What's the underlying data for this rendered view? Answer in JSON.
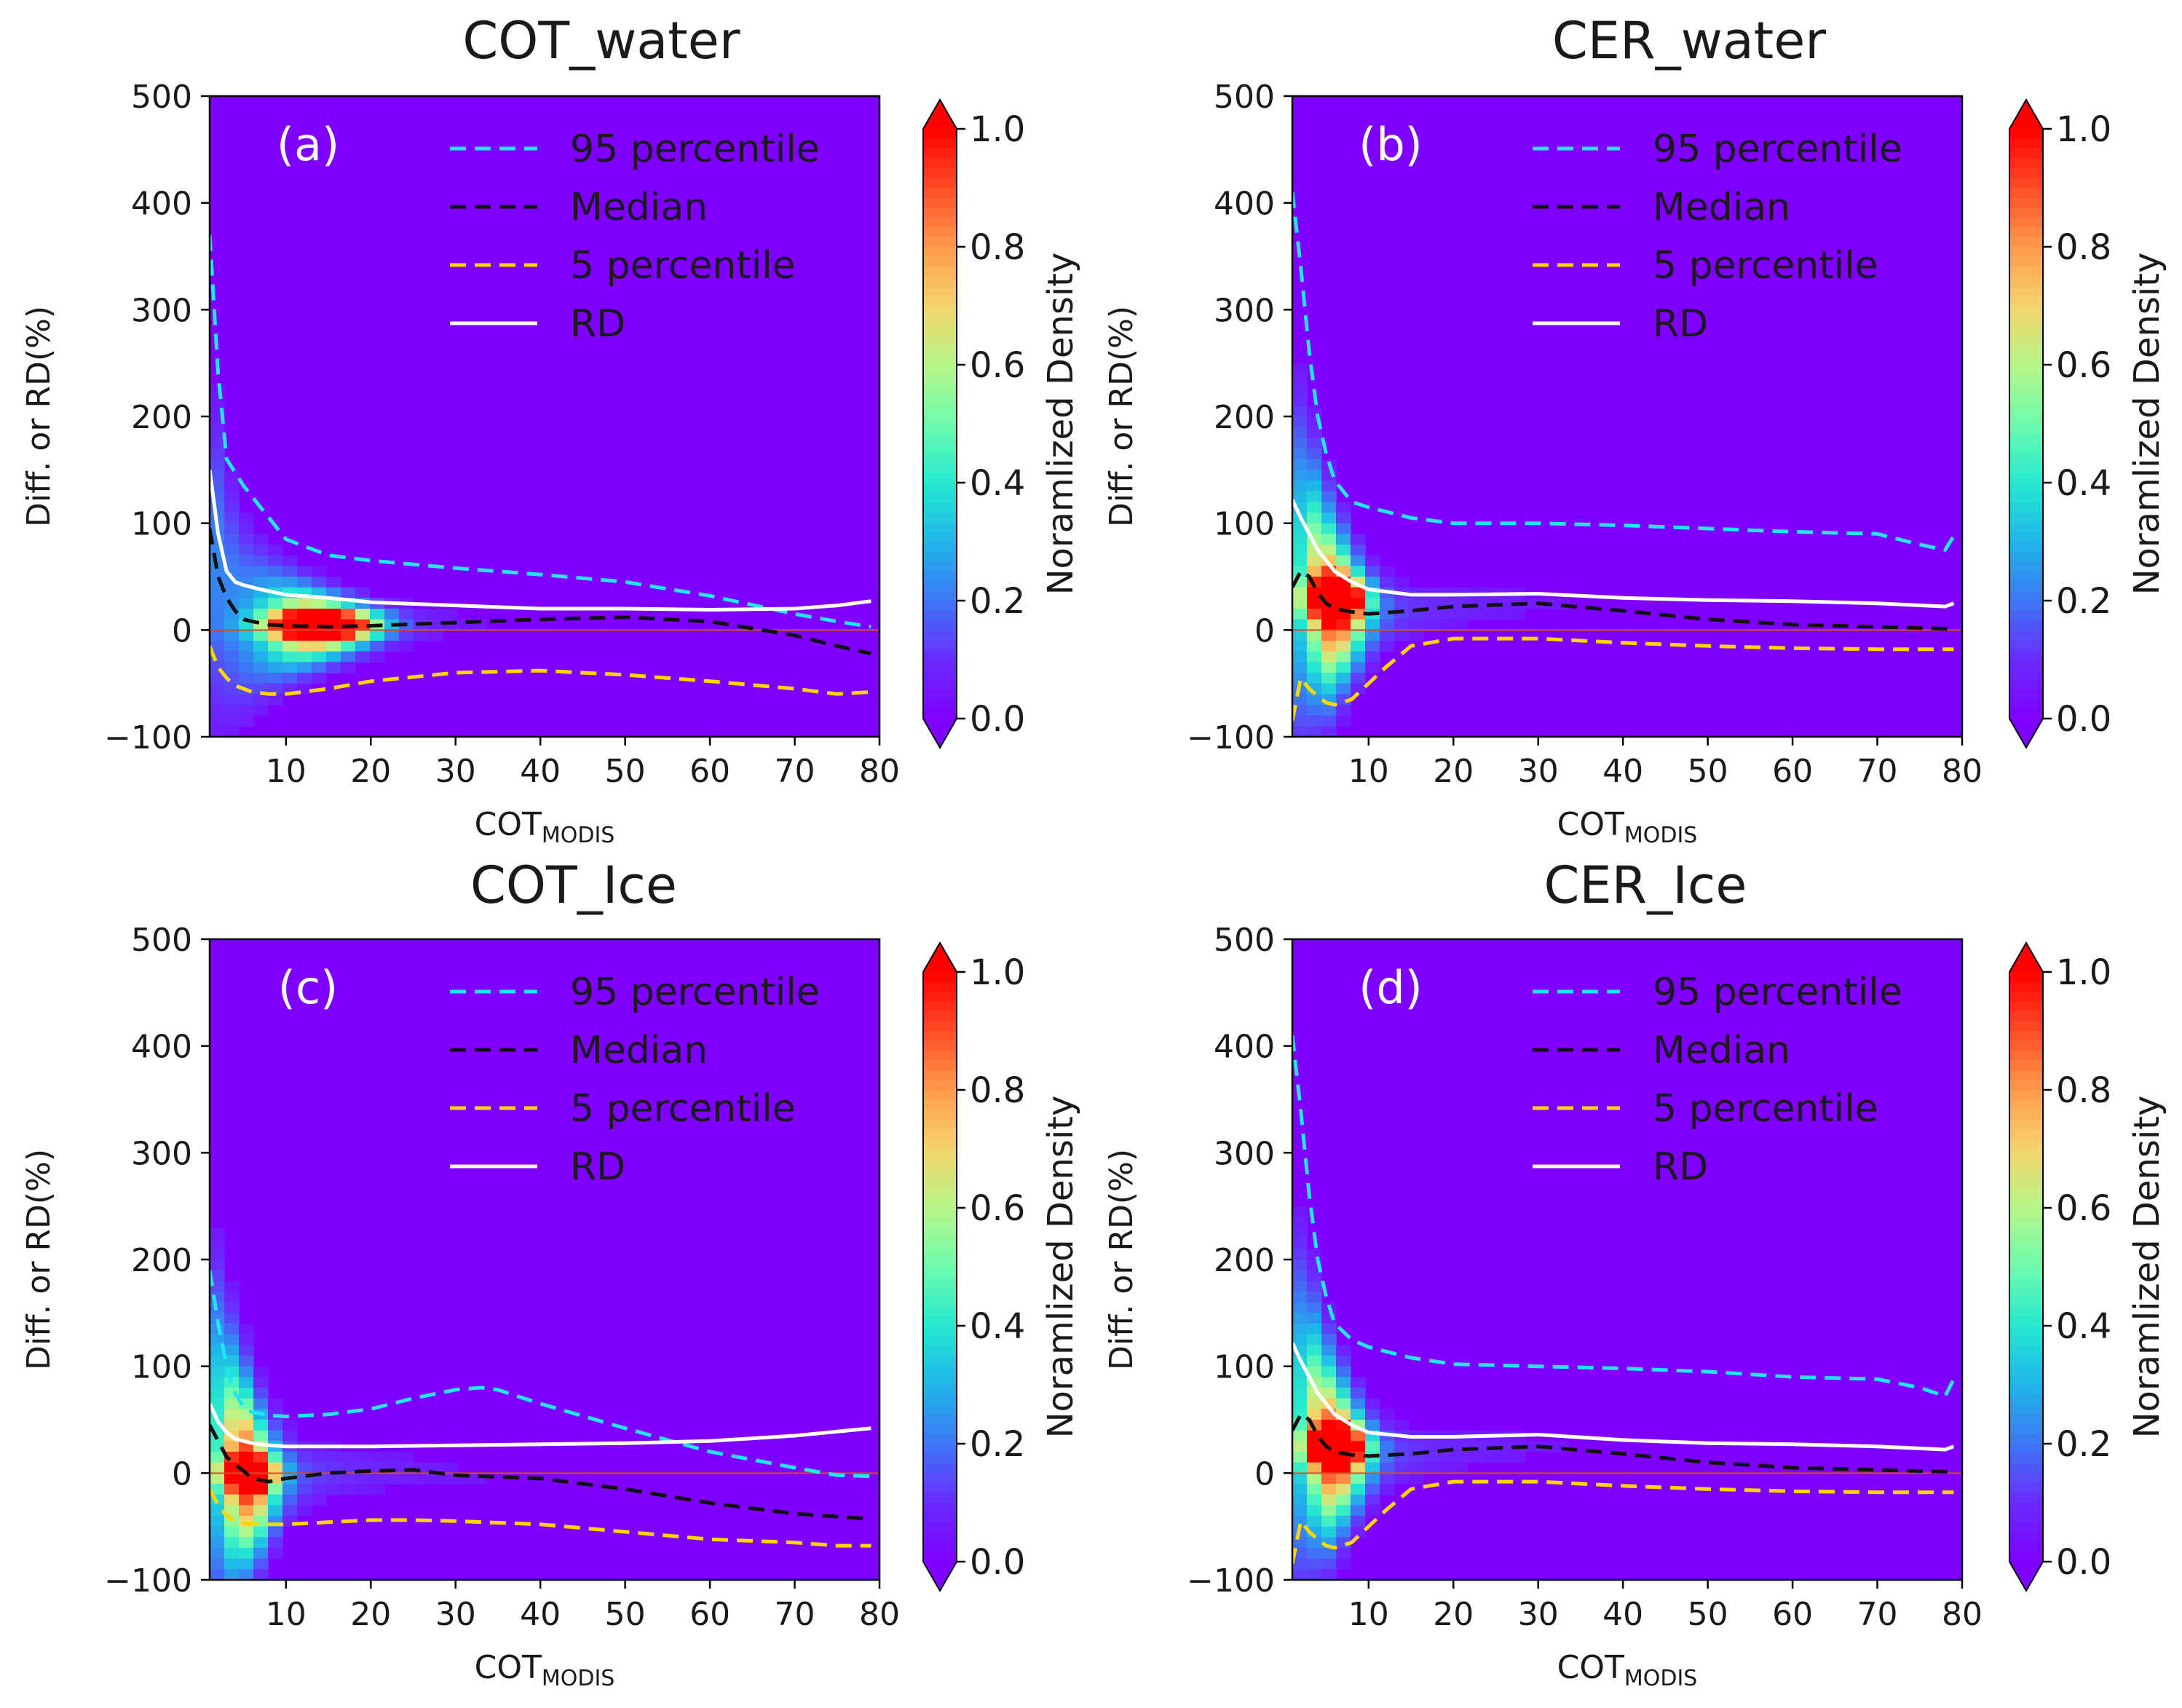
{
  "figure": {
    "colormap": [
      "#7f00ff",
      "#6a2bfe",
      "#3d77f5",
      "#1fb6e9",
      "#26e8d0",
      "#6dfcae",
      "#b6f587",
      "#f4d46a",
      "#ff9a4a",
      "#ff4c26",
      "#ff0000"
    ]
  },
  "chart_data": [
    {
      "type": "line",
      "panel": "(a)",
      "title": "COT_water",
      "xlabel_main": "COT",
      "xlabel_sub": "MODIS",
      "ylabel": "Diff. or RD(%)",
      "xlim": [
        1,
        80
      ],
      "ylim": [
        -100,
        500
      ],
      "xticks": [
        "10",
        "20",
        "30",
        "40",
        "50",
        "60",
        "70",
        "80"
      ],
      "yticks": [
        "500",
        "400",
        "300",
        "200",
        "100",
        "0",
        "−100"
      ],
      "colorbar": {
        "label": "Noramlized Density",
        "ticks": [
          "1.0",
          "0.8",
          "0.6",
          "0.4",
          "0.2",
          "0.0"
        ]
      },
      "legend": [
        "95 percentile",
        "Median",
        "5 percentile",
        "RD"
      ],
      "density_peak": {
        "x": 14,
        "y": 5,
        "sx": 6,
        "sy": 12
      },
      "series": [
        {
          "name": "95 percentile",
          "color": "#22e5f5",
          "dash": true,
          "x": [
            1,
            2,
            3,
            5,
            8,
            10,
            15,
            20,
            30,
            40,
            50,
            60,
            70,
            75,
            79
          ],
          "y": [
            370,
            240,
            160,
            135,
            105,
            85,
            70,
            65,
            58,
            52,
            45,
            32,
            15,
            8,
            3
          ]
        },
        {
          "name": "Median",
          "color": "#111111",
          "dash": true,
          "x": [
            1,
            2,
            3,
            4,
            5,
            6,
            8,
            10,
            15,
            20,
            30,
            40,
            50,
            60,
            70,
            75,
            79
          ],
          "y": [
            95,
            50,
            30,
            18,
            10,
            8,
            5,
            4,
            3,
            4,
            7,
            10,
            12,
            8,
            -5,
            -15,
            -22
          ]
        },
        {
          "name": "5 percentile",
          "color": "#ffd700",
          "dash": true,
          "x": [
            1,
            2,
            3,
            4,
            6,
            8,
            10,
            15,
            20,
            30,
            40,
            50,
            60,
            70,
            75,
            79
          ],
          "y": [
            -15,
            -35,
            -45,
            -52,
            -58,
            -60,
            -60,
            -55,
            -48,
            -40,
            -38,
            -42,
            -48,
            -55,
            -60,
            -58
          ]
        },
        {
          "name": "RD",
          "color": "#ffffff",
          "dash": false,
          "x": [
            1,
            2,
            3,
            4,
            5,
            7,
            10,
            15,
            20,
            30,
            40,
            50,
            60,
            70,
            75,
            79
          ],
          "y": [
            150,
            90,
            55,
            45,
            42,
            38,
            33,
            30,
            26,
            23,
            20,
            20,
            19,
            20,
            23,
            27
          ]
        }
      ]
    },
    {
      "type": "line",
      "panel": "(b)",
      "title": "CER_water",
      "xlabel_main": "COT",
      "xlabel_sub": "MODIS",
      "ylabel": "Diff. or RD(%)",
      "xlim": [
        1,
        80
      ],
      "ylim": [
        -100,
        500
      ],
      "xticks": [
        "10",
        "20",
        "30",
        "40",
        "50",
        "60",
        "70",
        "80"
      ],
      "yticks": [
        "500",
        "400",
        "300",
        "200",
        "100",
        "0",
        "−100"
      ],
      "colorbar": {
        "label": "Noramlized Density",
        "ticks": [
          "1.0",
          "0.8",
          "0.6",
          "0.4",
          "0.2",
          "0.0"
        ]
      },
      "legend": [
        "95 percentile",
        "Median",
        "5 percentile",
        "RD"
      ],
      "density_peak": {
        "x": 6,
        "y": 30,
        "sx": 3.5,
        "sy": 18
      },
      "series": [
        {
          "name": "95 percentile",
          "color": "#22e5f5",
          "dash": true,
          "x": [
            1,
            2,
            3,
            4,
            5,
            6,
            8,
            10,
            15,
            20,
            30,
            40,
            50,
            60,
            70,
            75,
            78,
            79
          ],
          "y": [
            410,
            340,
            260,
            200,
            165,
            140,
            120,
            115,
            105,
            100,
            100,
            98,
            95,
            92,
            90,
            80,
            75,
            88
          ]
        },
        {
          "name": "Median",
          "color": "#111111",
          "dash": true,
          "x": [
            1,
            2,
            3,
            4,
            5,
            6,
            8,
            10,
            15,
            20,
            30,
            40,
            50,
            60,
            70,
            79
          ],
          "y": [
            40,
            55,
            50,
            35,
            25,
            20,
            17,
            15,
            18,
            22,
            25,
            18,
            10,
            5,
            3,
            1
          ]
        },
        {
          "name": "5 percentile",
          "color": "#ffd700",
          "dash": true,
          "x": [
            1,
            2,
            3,
            4,
            5,
            6,
            8,
            10,
            12,
            15,
            20,
            30,
            40,
            50,
            60,
            70,
            79
          ],
          "y": [
            -85,
            -45,
            -55,
            -62,
            -68,
            -70,
            -65,
            -50,
            -35,
            -15,
            -8,
            -8,
            -12,
            -15,
            -17,
            -18,
            -18
          ]
        },
        {
          "name": "RD",
          "color": "#ffffff",
          "dash": false,
          "x": [
            1,
            2,
            3,
            4,
            5,
            6,
            8,
            10,
            15,
            20,
            30,
            40,
            50,
            60,
            70,
            78,
            79
          ],
          "y": [
            122,
            105,
            90,
            75,
            65,
            55,
            45,
            38,
            33,
            33,
            34,
            30,
            28,
            27,
            25,
            22,
            25
          ]
        }
      ]
    },
    {
      "type": "line",
      "panel": "(c)",
      "title": "COT_Ice",
      "xlabel_main": "COT",
      "xlabel_sub": "MODIS",
      "ylabel": "Diff. or RD(%)",
      "xlim": [
        1,
        80
      ],
      "ylim": [
        -100,
        500
      ],
      "xticks": [
        "10",
        "20",
        "30",
        "40",
        "50",
        "60",
        "70",
        "80"
      ],
      "yticks": [
        "500",
        "400",
        "300",
        "200",
        "100",
        "0",
        "−100"
      ],
      "colorbar": {
        "label": "Noramlized Density",
        "ticks": [
          "1.0",
          "0.8",
          "0.6",
          "0.4",
          "0.2",
          "0.0"
        ]
      },
      "legend": [
        "95 percentile",
        "Median",
        "5 percentile",
        "RD"
      ],
      "density_peak": {
        "x": 5.5,
        "y": 0,
        "sx": 3.2,
        "sy": 14
      },
      "series": [
        {
          "name": "95 percentile",
          "color": "#22e5f5",
          "dash": true,
          "x": [
            1,
            2,
            3,
            4,
            5,
            6,
            8,
            10,
            15,
            20,
            25,
            30,
            33,
            35,
            40,
            50,
            60,
            70,
            75,
            79
          ],
          "y": [
            190,
            140,
            100,
            75,
            62,
            57,
            54,
            53,
            55,
            60,
            70,
            78,
            80,
            78,
            65,
            42,
            20,
            5,
            -2,
            -3
          ]
        },
        {
          "name": "Median",
          "color": "#111111",
          "dash": true,
          "x": [
            1,
            2,
            3,
            4,
            5,
            6,
            8,
            10,
            15,
            20,
            25,
            30,
            40,
            50,
            60,
            70,
            79
          ],
          "y": [
            45,
            30,
            15,
            8,
            2,
            -5,
            -8,
            -5,
            0,
            2,
            3,
            -2,
            -5,
            -15,
            -28,
            -38,
            -43
          ]
        },
        {
          "name": "5 percentile",
          "color": "#ffd700",
          "dash": true,
          "x": [
            1,
            2,
            3,
            4,
            5,
            8,
            10,
            15,
            20,
            25,
            30,
            40,
            50,
            60,
            70,
            75,
            79
          ],
          "y": [
            -15,
            -30,
            -40,
            -45,
            -47,
            -48,
            -48,
            -46,
            -44,
            -44,
            -45,
            -48,
            -55,
            -62,
            -65,
            -68,
            -68
          ]
        },
        {
          "name": "RD",
          "color": "#ffffff",
          "dash": false,
          "x": [
            1,
            2,
            3,
            4,
            5,
            6,
            8,
            10,
            15,
            20,
            30,
            40,
            50,
            60,
            70,
            79
          ],
          "y": [
            65,
            48,
            38,
            32,
            30,
            28,
            26,
            25,
            25,
            25,
            26,
            27,
            28,
            30,
            35,
            42
          ]
        }
      ]
    },
    {
      "type": "line",
      "panel": "(d)",
      "title": "CER_Ice",
      "xlabel_main": "COT",
      "xlabel_sub": "MODIS",
      "ylabel": "Diff. or RD(%)",
      "xlim": [
        1,
        80
      ],
      "ylim": [
        -100,
        500
      ],
      "xticks": [
        "10",
        "20",
        "30",
        "40",
        "50",
        "60",
        "70",
        "80"
      ],
      "yticks": [
        "500",
        "400",
        "300",
        "200",
        "100",
        "0",
        "−100"
      ],
      "colorbar": {
        "label": "Noramlized Density",
        "ticks": [
          "1.0",
          "0.8",
          "0.6",
          "0.4",
          "0.2",
          "0.0"
        ]
      },
      "legend": [
        "95 percentile",
        "Median",
        "5 percentile",
        "RD"
      ],
      "density_peak": {
        "x": 6,
        "y": 25,
        "sx": 3.5,
        "sy": 18
      },
      "series": [
        {
          "name": "95 percentile",
          "color": "#22e5f5",
          "dash": true,
          "x": [
            1,
            2,
            3,
            4,
            5,
            6,
            8,
            10,
            15,
            20,
            30,
            40,
            50,
            60,
            70,
            75,
            78,
            79
          ],
          "y": [
            410,
            340,
            260,
            200,
            165,
            140,
            125,
            118,
            108,
            102,
            100,
            98,
            95,
            90,
            88,
            80,
            72,
            88
          ]
        },
        {
          "name": "Median",
          "color": "#111111",
          "dash": true,
          "x": [
            1,
            2,
            3,
            4,
            5,
            6,
            8,
            10,
            15,
            20,
            30,
            40,
            50,
            60,
            70,
            79
          ],
          "y": [
            40,
            55,
            50,
            35,
            25,
            20,
            17,
            16,
            18,
            22,
            25,
            18,
            10,
            5,
            3,
            1
          ]
        },
        {
          "name": "5 percentile",
          "color": "#ffd700",
          "dash": true,
          "x": [
            1,
            2,
            3,
            4,
            5,
            6,
            8,
            10,
            12,
            15,
            20,
            30,
            40,
            50,
            60,
            70,
            79
          ],
          "y": [
            -85,
            -45,
            -55,
            -62,
            -68,
            -70,
            -65,
            -50,
            -35,
            -15,
            -8,
            -8,
            -12,
            -15,
            -17,
            -18,
            -18
          ]
        },
        {
          "name": "RD",
          "color": "#ffffff",
          "dash": false,
          "x": [
            1,
            2,
            3,
            4,
            5,
            6,
            8,
            10,
            15,
            20,
            30,
            40,
            50,
            60,
            70,
            78,
            79
          ],
          "y": [
            122,
            105,
            90,
            75,
            65,
            55,
            45,
            38,
            34,
            34,
            36,
            31,
            28,
            27,
            25,
            22,
            25
          ]
        }
      ]
    }
  ]
}
